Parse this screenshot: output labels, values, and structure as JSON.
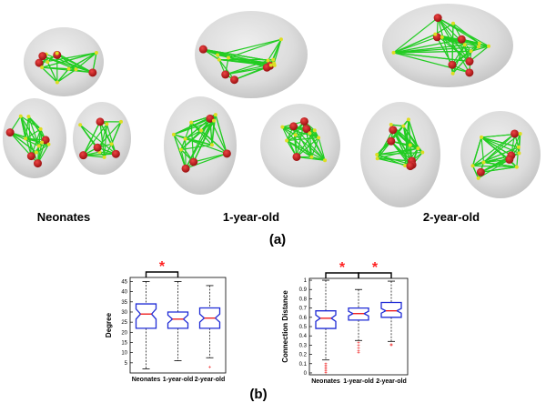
{
  "panel_a": {
    "label": "(a)",
    "groups": [
      {
        "label": "Neonates"
      },
      {
        "label": "1-year-old"
      },
      {
        "label": "2-year-old"
      }
    ],
    "colors": {
      "brain": "#cfcfcf",
      "edge": "#22cc22",
      "node": "#cc1111",
      "small_node": "#dddd22"
    }
  },
  "panel_b": {
    "label": "(b)",
    "significance_marker": "*",
    "marker_color": "#ff2222"
  },
  "chart_data": [
    {
      "type": "box",
      "ylabel": "Degree",
      "ylim": [
        0,
        47
      ],
      "yticks": [
        "5",
        "10",
        "15",
        "20",
        "25",
        "30",
        "35",
        "40",
        "45"
      ],
      "categories": [
        "Neonates",
        "1-year-old",
        "2-year-old"
      ],
      "boxes": [
        {
          "whisker_low": 2,
          "q1": 22,
          "median": 29,
          "notch_low": 26.5,
          "notch_high": 31.5,
          "q3": 34,
          "whisker_high": 45
        },
        {
          "whisker_low": 6,
          "q1": 22,
          "median": 26.5,
          "notch_low": 24.5,
          "notch_high": 28.5,
          "q3": 30,
          "whisker_high": 45
        },
        {
          "whisker_low": 7.5,
          "q1": 22,
          "median": 27,
          "notch_low": 25,
          "notch_high": 29,
          "q3": 32,
          "whisker_high": 43
        }
      ],
      "outliers": [
        [],
        [],
        [
          3
        ]
      ],
      "significance": [
        {
          "from": 0,
          "to": 1
        }
      ]
    },
    {
      "type": "box",
      "ylabel": "Connection Distance",
      "ylim": [
        -0.02,
        1.02
      ],
      "yticks": [
        "0",
        "0.1",
        "0.2",
        "0.3",
        "0.4",
        "0.5",
        "0.6",
        "0.7",
        "0.8",
        "0.9",
        "1"
      ],
      "categories": [
        "Neonates",
        "1-year-old",
        "2-year-old"
      ],
      "boxes": [
        {
          "whisker_low": 0.14,
          "q1": 0.48,
          "median": 0.59,
          "notch_low": 0.555,
          "notch_high": 0.625,
          "q3": 0.67,
          "whisker_high": 1.0
        },
        {
          "whisker_low": 0.35,
          "q1": 0.57,
          "median": 0.64,
          "notch_low": 0.615,
          "notch_high": 0.665,
          "q3": 0.7,
          "whisker_high": 0.9
        },
        {
          "whisker_low": 0.34,
          "q1": 0.6,
          "median": 0.67,
          "notch_low": 0.645,
          "notch_high": 0.695,
          "q3": 0.76,
          "whisker_high": 0.99
        }
      ],
      "outliers": [
        [
          0.1,
          0.08,
          0.06,
          0.04,
          0.02,
          0.0
        ],
        [
          0.33,
          0.3,
          0.27,
          0.24,
          0.22
        ],
        [
          0.31,
          0.3
        ]
      ],
      "significance": [
        {
          "from": 0,
          "to": 1
        },
        {
          "from": 1,
          "to": 2
        }
      ]
    }
  ]
}
